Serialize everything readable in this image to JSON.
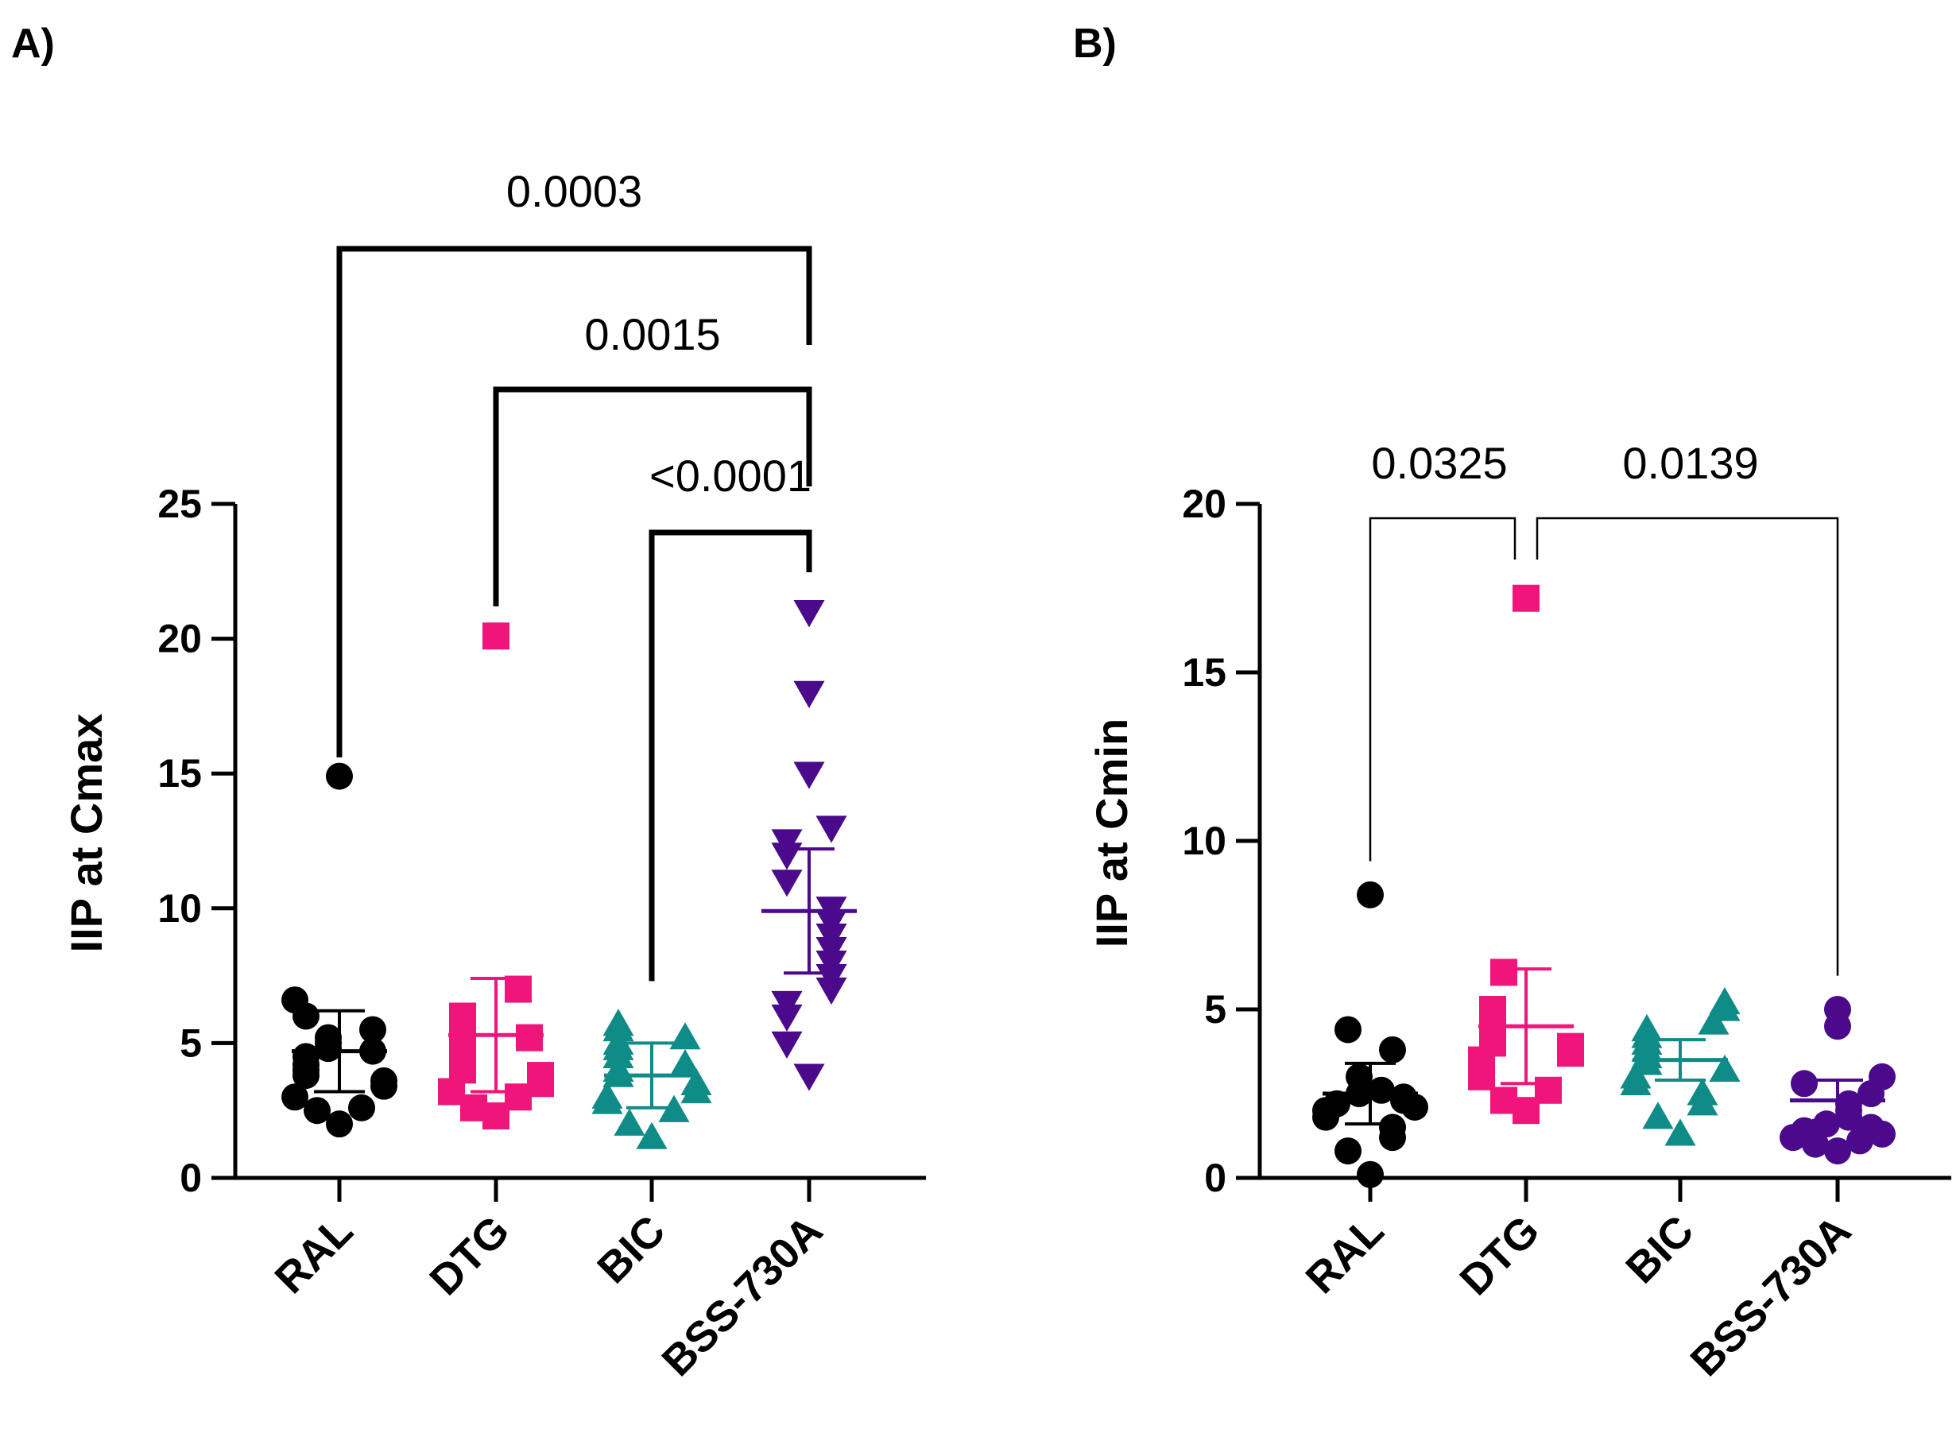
{
  "chart_data": [
    {
      "panel_label": "A)",
      "type": "scatter",
      "ylabel": "IIP at Cmax",
      "ylim": [
        0,
        25
      ],
      "yticks": [
        0,
        5,
        10,
        15,
        20,
        25
      ],
      "ytick_labels": [
        "0",
        "5",
        "10",
        "15",
        "20",
        "25"
      ],
      "categories": [
        "RAL",
        "DTG",
        "BIC",
        "BSS-730A"
      ],
      "series": [
        {
          "name": "RAL",
          "marker": "circle",
          "color": "#000000",
          "values": [
            2.0,
            2.5,
            2.6,
            3.0,
            3.4,
            3.6,
            3.8,
            4.0,
            4.2,
            4.5,
            4.7,
            4.8,
            5.0,
            5.2,
            5.5,
            6.0,
            6.6,
            14.9
          ],
          "mean": 4.7,
          "error": 1.5
        },
        {
          "name": "DTG",
          "marker": "square",
          "color": "#F0157A",
          "values": [
            2.3,
            2.6,
            3.0,
            3.2,
            3.5,
            3.8,
            4.0,
            4.2,
            4.5,
            4.7,
            5.0,
            5.2,
            5.5,
            5.8,
            6.0,
            7.0,
            20.1
          ],
          "mean": 5.3,
          "error": 2.1
        },
        {
          "name": "BIC",
          "marker": "triangle-up",
          "color": "#0F8C87",
          "values": [
            1.5,
            2.0,
            2.5,
            2.8,
            3.0,
            3.2,
            3.5,
            3.8,
            4.0,
            4.2,
            4.5,
            4.8,
            5.0,
            5.2,
            5.5,
            5.7
          ],
          "mean": 3.8,
          "error": 1.2
        },
        {
          "name": "BSS-730A",
          "marker": "triangle-down",
          "color": "#4B0A8C",
          "values": [
            3.8,
            5.0,
            6.0,
            6.5,
            7.0,
            7.5,
            8.0,
            8.5,
            9.0,
            9.5,
            10.0,
            11.0,
            12.0,
            12.5,
            13.0,
            15.0,
            18.0,
            21.0
          ],
          "mean": 9.9,
          "error": 2.3
        }
      ],
      "brackets": [
        {
          "from": "RAL",
          "to": "BSS-730A",
          "label": "0.0003"
        },
        {
          "from": "DTG",
          "to": "BSS-730A",
          "label": "0.0015"
        },
        {
          "from": "BIC",
          "to": "BSS-730A",
          "label": "<0.0001"
        }
      ]
    },
    {
      "panel_label": "B)",
      "type": "scatter",
      "ylabel": "IIP at Cmin",
      "ylim": [
        0,
        20
      ],
      "yticks": [
        0,
        5,
        10,
        15,
        20
      ],
      "ytick_labels": [
        "0",
        "5",
        "10",
        "15",
        "20"
      ],
      "categories": [
        "RAL",
        "DTG",
        "BIC",
        "BSS-730A"
      ],
      "series": [
        {
          "name": "RAL",
          "marker": "circle",
          "color": "#000000",
          "values": [
            0.1,
            0.8,
            1.2,
            1.5,
            1.8,
            2.0,
            2.1,
            2.2,
            2.3,
            2.4,
            2.5,
            2.6,
            3.0,
            3.8,
            4.4,
            8.4
          ],
          "mean": 2.5,
          "error": 0.9
        },
        {
          "name": "DTG",
          "marker": "square",
          "color": "#F0157A",
          "values": [
            2.0,
            2.3,
            2.6,
            3.0,
            3.3,
            3.5,
            3.7,
            3.9,
            4.0,
            4.2,
            4.5,
            4.8,
            5.0,
            6.1,
            17.2
          ],
          "mean": 4.5,
          "error": 1.7
        },
        {
          "name": "BIC",
          "marker": "triangle-up",
          "color": "#0F8C87",
          "values": [
            1.3,
            1.8,
            2.2,
            2.5,
            2.8,
            3.0,
            3.2,
            3.4,
            3.6,
            3.8,
            4.0,
            4.2,
            4.4,
            4.6,
            5.0,
            5.2
          ],
          "mean": 3.5,
          "error": 0.6
        },
        {
          "name": "BSS-730A",
          "marker": "circle",
          "color": "#4B0A8C",
          "values": [
            0.8,
            1.0,
            1.1,
            1.2,
            1.3,
            1.4,
            1.5,
            1.6,
            1.8,
            2.0,
            2.2,
            2.5,
            2.8,
            3.0,
            4.5,
            5.0
          ],
          "mean": 2.3,
          "error": 0.6
        }
      ],
      "brackets": [
        {
          "from": "RAL",
          "to": "DTG",
          "label": "0.0325"
        },
        {
          "from": "DTG",
          "to": "BSS-730A",
          "label": "0.0139"
        }
      ]
    }
  ]
}
